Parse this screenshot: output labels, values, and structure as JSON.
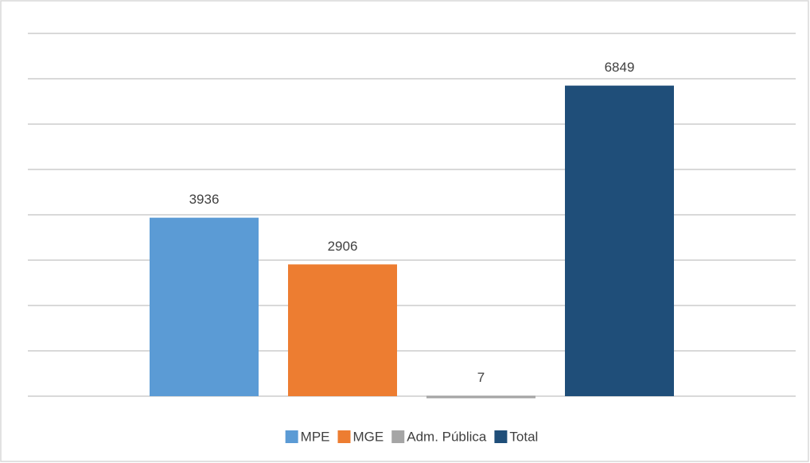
{
  "chart_data": {
    "type": "bar",
    "categories": [
      null
    ],
    "series": [
      {
        "name": "MPE",
        "color": "#5b9bd5",
        "values": [
          3936
        ]
      },
      {
        "name": "MGE",
        "color": "#ed7d31",
        "values": [
          2906
        ]
      },
      {
        "name": "Adm. Pública",
        "color": "#a5a5a5",
        "values": [
          7
        ]
      },
      {
        "name": "Total",
        "color": "#1f4e79",
        "values": [
          6849
        ]
      }
    ],
    "ylim": [
      0,
      8000
    ],
    "yticks": [
      0,
      1000,
      2000,
      3000,
      4000,
      5000,
      6000,
      7000,
      8000
    ],
    "grid": true,
    "legend": "bottom"
  }
}
